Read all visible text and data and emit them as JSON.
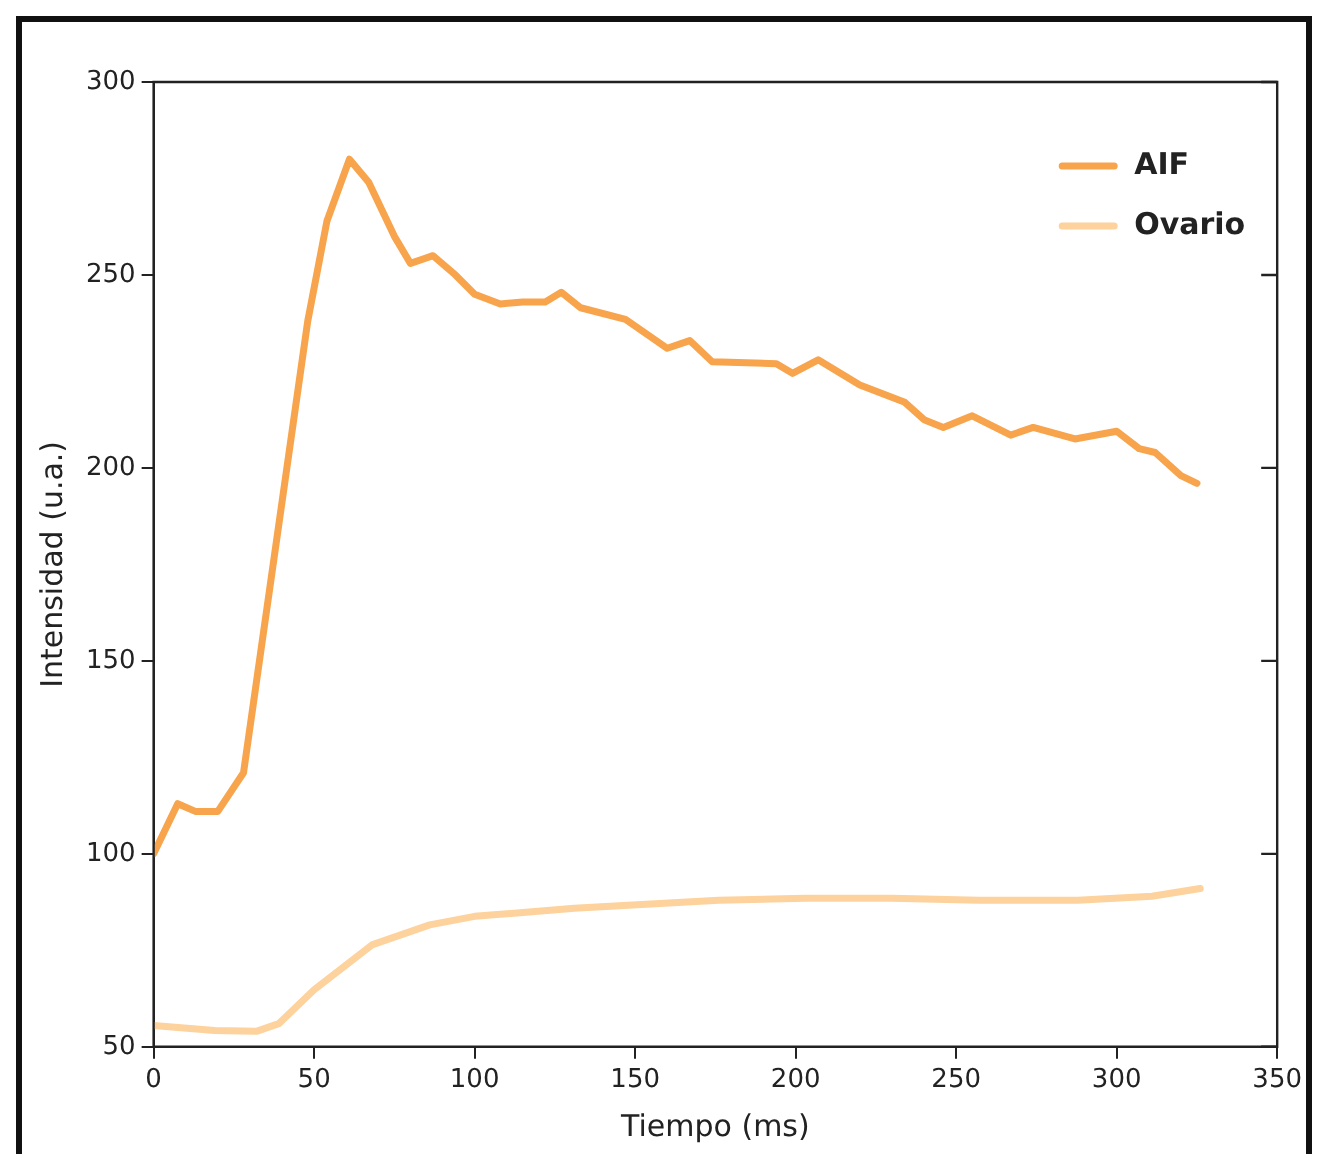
{
  "chart_data": {
    "type": "line",
    "xlabel": "Tiempo (ms)",
    "ylabel": "Intensidad (u.a.)",
    "xlim": [
      0,
      350
    ],
    "xticks": [
      0,
      50,
      100,
      150,
      200,
      250,
      300,
      350
    ],
    "ylim": [
      50,
      300
    ],
    "yticks": [
      50,
      100,
      150,
      200,
      250,
      300
    ],
    "grid": false,
    "legend": "top right",
    "marker": "none",
    "line_style": "solid",
    "series": [
      {
        "name": "AIF",
        "color": "#f7a44c",
        "x": [
          0,
          7.5,
          13,
          20,
          28,
          48,
          54,
          61,
          67,
          75,
          80,
          87,
          94,
          100,
          108,
          115,
          122,
          127,
          133,
          147,
          160,
          167,
          174,
          194,
          199,
          207,
          220,
          234,
          240,
          246,
          255,
          267,
          274,
          287,
          300,
          307,
          312,
          320,
          325
        ],
        "values": [
          100,
          113,
          111,
          111,
          121,
          238,
          264,
          280,
          274,
          260,
          253,
          255,
          250,
          245,
          242.5,
          243,
          243,
          245.5,
          241.5,
          238.5,
          231,
          233,
          227.5,
          227,
          224.5,
          228,
          221.5,
          217,
          212.5,
          210.5,
          213.5,
          208.5,
          210.5,
          207.5,
          209.5,
          205,
          204,
          198,
          196
        ]
      },
      {
        "name": "Ovario",
        "color": "#fdd29c",
        "x": [
          0,
          19,
          32,
          39,
          50,
          68,
          86,
          100,
          131,
          176,
          203,
          230,
          257,
          288,
          311,
          326
        ],
        "values": [
          55.5,
          54.2,
          54,
          56,
          64.8,
          76.4,
          81.6,
          83.8,
          85.9,
          88,
          88.5,
          88.5,
          88,
          88,
          89,
          91
        ]
      }
    ]
  }
}
